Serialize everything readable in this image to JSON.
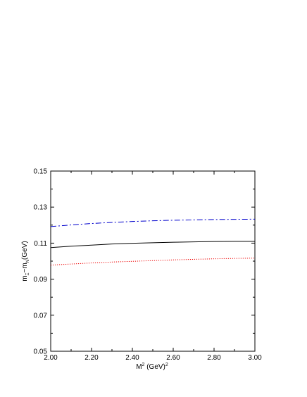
{
  "chart_data": {
    "type": "line",
    "title": "",
    "xlabel_parts": {
      "m": "M",
      "sup": "2",
      "unit": " (GeV)",
      "unit_sup": "2"
    },
    "ylabel_parts": {
      "m1": "m",
      "s1": "Ξ",
      "dash": "−m",
      "s2": "N",
      "unit": "(GeV)"
    },
    "xlim": [
      2.0,
      3.0
    ],
    "ylim": [
      0.05,
      0.15
    ],
    "x_ticks": [
      2.0,
      2.2,
      2.4,
      2.6,
      2.8,
      3.0
    ],
    "x_tick_labels": [
      "2.00",
      "2.20",
      "2.40",
      "2.60",
      "2.80",
      "3.00"
    ],
    "y_ticks": [
      0.05,
      0.07,
      0.09,
      0.11,
      0.13,
      0.15
    ],
    "y_tick_labels": [
      "0.05",
      "0.07",
      "0.09",
      "0.11",
      "0.13",
      "0.15"
    ],
    "grid": false,
    "legend": "none",
    "series": [
      {
        "color": "#0000cc",
        "style": "dash-dot",
        "x": [
          2.0,
          2.1,
          2.2,
          2.3,
          2.4,
          2.5,
          2.6,
          2.7,
          2.8,
          2.9,
          3.0
        ],
        "y": [
          0.1192,
          0.1201,
          0.1209,
          0.1215,
          0.122,
          0.1224,
          0.1227,
          0.1229,
          0.1231,
          0.1232,
          0.1233
        ]
      },
      {
        "color": "#000000",
        "style": "solid",
        "x": [
          2.0,
          2.1,
          2.2,
          2.3,
          2.4,
          2.5,
          2.6,
          2.7,
          2.8,
          2.9,
          3.0
        ],
        "y": [
          0.1075,
          0.1083,
          0.1089,
          0.1095,
          0.1099,
          0.1102,
          0.1105,
          0.1107,
          0.1109,
          0.111,
          0.111
        ]
      },
      {
        "color": "#ee0000",
        "style": "dotted",
        "x": [
          2.0,
          2.1,
          2.2,
          2.3,
          2.4,
          2.5,
          2.6,
          2.7,
          2.8,
          2.9,
          3.0
        ],
        "y": [
          0.0978,
          0.0984,
          0.099,
          0.0995,
          0.0999,
          0.1003,
          0.1007,
          0.101,
          0.1013,
          0.1015,
          0.1017
        ]
      }
    ]
  }
}
